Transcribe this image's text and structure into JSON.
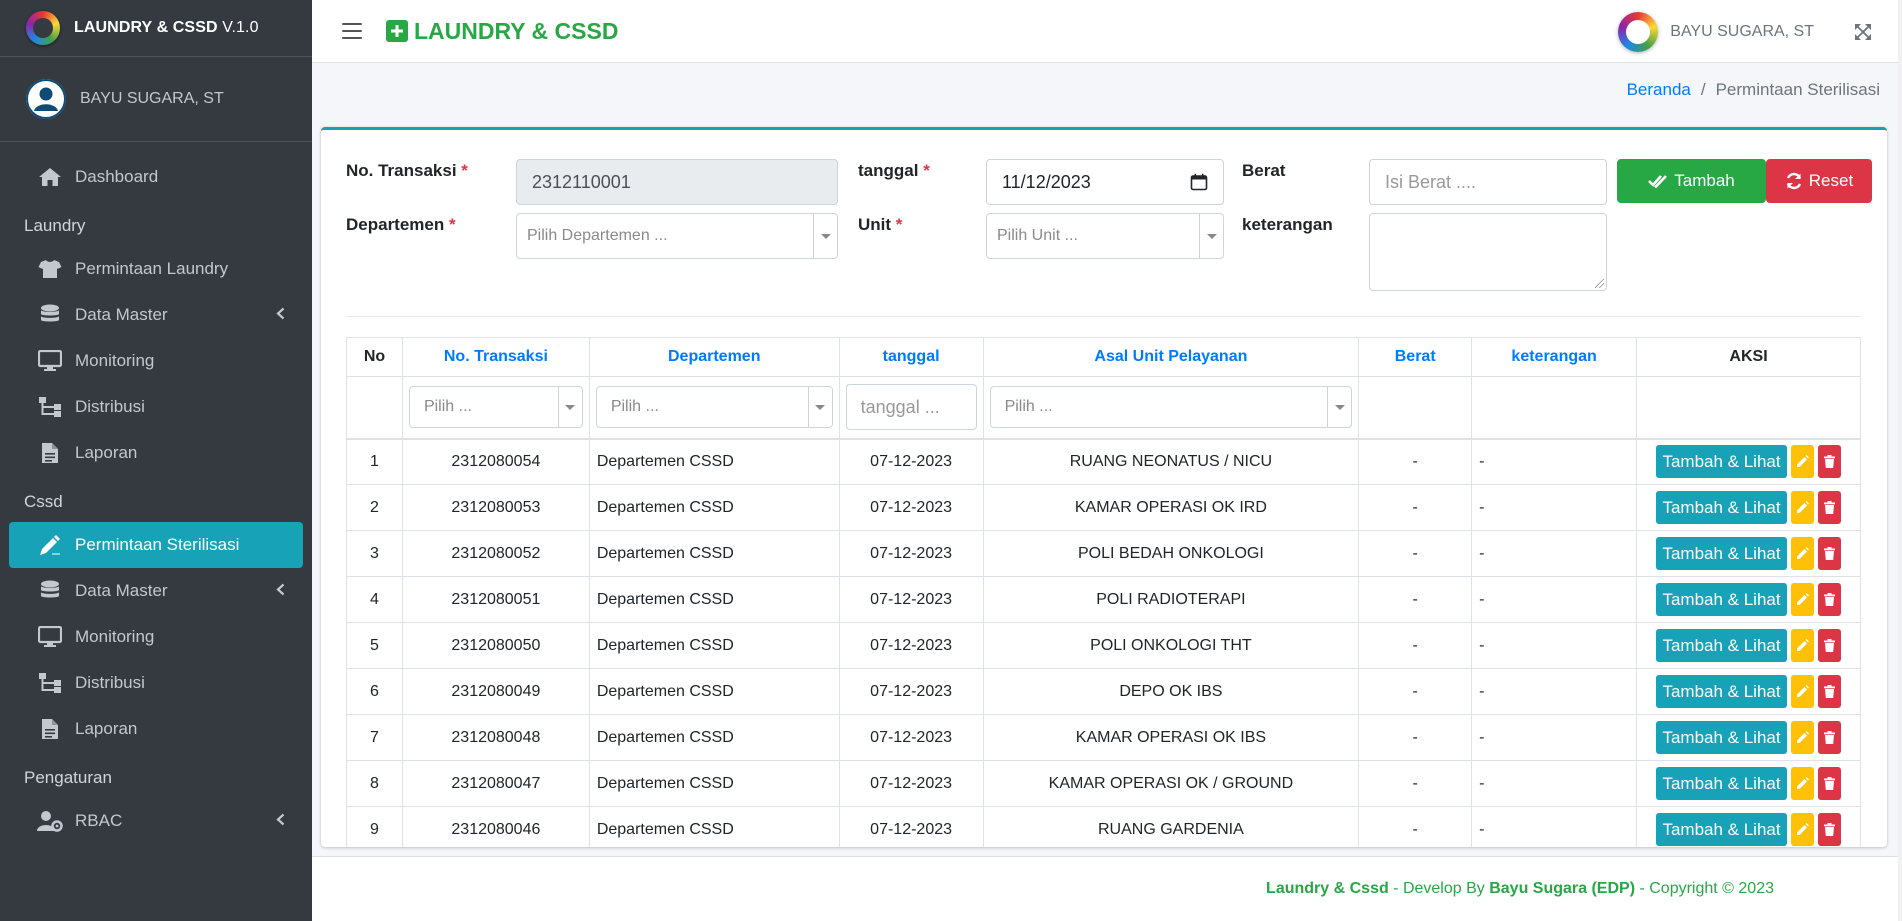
{
  "brand": {
    "name": "LAUNDRY & CSSD",
    "version": "V.1.0"
  },
  "user": {
    "name": "BAYU SUGARA, ST"
  },
  "sidebar": {
    "items": [
      {
        "type": "item",
        "label": "Dashboard",
        "icon": "home-icon"
      },
      {
        "type": "header",
        "label": "Laundry"
      },
      {
        "type": "item",
        "label": "Permintaan Laundry",
        "icon": "shirt-icon"
      },
      {
        "type": "item",
        "label": "Data Master",
        "icon": "database-icon",
        "arrow": true
      },
      {
        "type": "item",
        "label": "Monitoring",
        "icon": "desktop-icon"
      },
      {
        "type": "item",
        "label": "Distribusi",
        "icon": "sitemap-icon"
      },
      {
        "type": "item",
        "label": "Laporan",
        "icon": "file-icon"
      },
      {
        "type": "header",
        "label": "Cssd"
      },
      {
        "type": "item",
        "label": "Permintaan Sterilisasi",
        "icon": "pen-icon",
        "active": true
      },
      {
        "type": "item",
        "label": "Data Master",
        "icon": "database-icon",
        "arrow": true
      },
      {
        "type": "item",
        "label": "Monitoring",
        "icon": "desktop-icon"
      },
      {
        "type": "item",
        "label": "Distribusi",
        "icon": "sitemap-icon"
      },
      {
        "type": "item",
        "label": "Laporan",
        "icon": "file-icon"
      },
      {
        "type": "header",
        "label": "Pengaturan"
      },
      {
        "type": "item",
        "label": "RBAC",
        "icon": "user-cog-icon",
        "arrow": true
      }
    ]
  },
  "topbar": {
    "title": "LAUNDRY & CSSD",
    "user": "BAYU SUGARA, ST"
  },
  "breadcrumb": {
    "home": "Beranda",
    "current": "Permintaan Sterilisasi",
    "separator": "/"
  },
  "form": {
    "no_transaksi_label": "No. Transaksi",
    "no_transaksi_value": "2312110001",
    "tanggal_label": "tanggal",
    "tanggal_value": "11/12/2023",
    "berat_label": "Berat",
    "berat_placeholder": "Isi Berat ....",
    "departemen_label": "Departemen",
    "departemen_placeholder": "Pilih Departemen ...",
    "unit_label": "Unit",
    "unit_placeholder": "Pilih Unit ...",
    "keterangan_label": "keterangan",
    "required_mark": "*",
    "tambah_label": "Tambah",
    "reset_label": "Reset"
  },
  "table": {
    "headers": [
      "No",
      "No. Transaksi",
      "Departemen",
      "tanggal",
      "Asal Unit Pelayanan",
      "Berat",
      "keterangan",
      "AKSI"
    ],
    "filters": {
      "select_placeholder": "Pilih ...",
      "date_placeholder": "tanggal ..."
    },
    "action_label": "Tambah & Lihat",
    "rows": [
      {
        "no": "1",
        "trx": "2312080054",
        "dept": "Departemen CSSD",
        "date": "07-12-2023",
        "unit": "RUANG NEONATUS / NICU",
        "berat": "-",
        "ket": "-"
      },
      {
        "no": "2",
        "trx": "2312080053",
        "dept": "Departemen CSSD",
        "date": "07-12-2023",
        "unit": "KAMAR OPERASI OK IRD",
        "berat": "-",
        "ket": "-"
      },
      {
        "no": "3",
        "trx": "2312080052",
        "dept": "Departemen CSSD",
        "date": "07-12-2023",
        "unit": "POLI BEDAH ONKOLOGI",
        "berat": "-",
        "ket": "-"
      },
      {
        "no": "4",
        "trx": "2312080051",
        "dept": "Departemen CSSD",
        "date": "07-12-2023",
        "unit": "POLI RADIOTERAPI",
        "berat": "-",
        "ket": "-"
      },
      {
        "no": "5",
        "trx": "2312080050",
        "dept": "Departemen CSSD",
        "date": "07-12-2023",
        "unit": "POLI ONKOLOGI THT",
        "berat": "-",
        "ket": "-"
      },
      {
        "no": "6",
        "trx": "2312080049",
        "dept": "Departemen CSSD",
        "date": "07-12-2023",
        "unit": "DEPO OK IBS",
        "berat": "-",
        "ket": "-"
      },
      {
        "no": "7",
        "trx": "2312080048",
        "dept": "Departemen CSSD",
        "date": "07-12-2023",
        "unit": "KAMAR OPERASI OK IBS",
        "berat": "-",
        "ket": "-"
      },
      {
        "no": "8",
        "trx": "2312080047",
        "dept": "Departemen CSSD",
        "date": "07-12-2023",
        "unit": "KAMAR OPERASI OK / GROUND",
        "berat": "-",
        "ket": "-"
      },
      {
        "no": "9",
        "trx": "2312080046",
        "dept": "Departemen CSSD",
        "date": "07-12-2023",
        "unit": "RUANG GARDENIA",
        "berat": "-",
        "ket": "-"
      }
    ]
  },
  "footer": {
    "app": "Laundry & Cssd",
    "develop_by": " - Develop By ",
    "author": "Bayu Sugara (EDP)",
    "copyright": " - Copyright © 2023"
  },
  "colors": {
    "sidebar_bg": "#343a40",
    "accent_info": "#17a2b8",
    "success": "#28a745",
    "danger": "#dc3545",
    "warning": "#ffc107",
    "link": "#007bff"
  }
}
